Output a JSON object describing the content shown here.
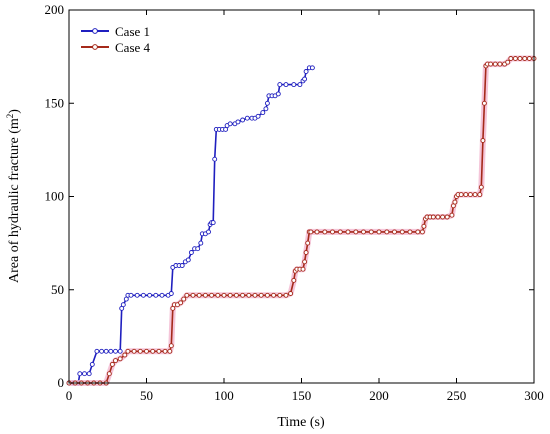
{
  "chart_data": {
    "type": "line",
    "xlabel": "Time (s)",
    "ylabel_text": "Area of hydraulic fracture (m",
    "ylabel_sup": "2",
    "ylabel_close": ")",
    "xlim": [
      0,
      300
    ],
    "ylim": [
      0,
      200
    ],
    "xticks": [
      0,
      50,
      100,
      150,
      200,
      250,
      300
    ],
    "yticks": [
      0,
      50,
      100,
      150,
      200
    ],
    "legend_position": "top-left",
    "series": [
      {
        "name": "Case 1",
        "color": "#1f1fbf",
        "marker": "circle",
        "points": [
          [
            0,
            0
          ],
          [
            3,
            0
          ],
          [
            6,
            0
          ],
          [
            7,
            5
          ],
          [
            10,
            5
          ],
          [
            13,
            5
          ],
          [
            15,
            10
          ],
          [
            18,
            17
          ],
          [
            21,
            17
          ],
          [
            24,
            17
          ],
          [
            27,
            17
          ],
          [
            30,
            17
          ],
          [
            33,
            17
          ],
          [
            34,
            40
          ],
          [
            35,
            42
          ],
          [
            37,
            45
          ],
          [
            38,
            47
          ],
          [
            40,
            47
          ],
          [
            44,
            47
          ],
          [
            48,
            47
          ],
          [
            52,
            47
          ],
          [
            56,
            47
          ],
          [
            60,
            47
          ],
          [
            64,
            47
          ],
          [
            66,
            48
          ],
          [
            67,
            62
          ],
          [
            69,
            63
          ],
          [
            71,
            63
          ],
          [
            73,
            63
          ],
          [
            75,
            65
          ],
          [
            77,
            66
          ],
          [
            79,
            70
          ],
          [
            81,
            72
          ],
          [
            83,
            72
          ],
          [
            85,
            75
          ],
          [
            86,
            80
          ],
          [
            88,
            80
          ],
          [
            90,
            81
          ],
          [
            91,
            85
          ],
          [
            92,
            86
          ],
          [
            93,
            86
          ],
          [
            94,
            120
          ],
          [
            95,
            136
          ],
          [
            97,
            136
          ],
          [
            99,
            136
          ],
          [
            101,
            136
          ],
          [
            102,
            138
          ],
          [
            104,
            139
          ],
          [
            107,
            139
          ],
          [
            109,
            140
          ],
          [
            112,
            141
          ],
          [
            115,
            142
          ],
          [
            118,
            142
          ],
          [
            120,
            142
          ],
          [
            122,
            143
          ],
          [
            125,
            145
          ],
          [
            127,
            147
          ],
          [
            128,
            150
          ],
          [
            129,
            154
          ],
          [
            131,
            154
          ],
          [
            133,
            154
          ],
          [
            135,
            155
          ],
          [
            136,
            160
          ],
          [
            140,
            160
          ],
          [
            145,
            160
          ],
          [
            149,
            160
          ],
          [
            151,
            162
          ],
          [
            152,
            163
          ],
          [
            153,
            167
          ],
          [
            155,
            169
          ],
          [
            157,
            169
          ]
        ]
      },
      {
        "name": "Case 4",
        "color": "#a52a1a",
        "marker": "circle",
        "points": [
          [
            0,
            0
          ],
          [
            4,
            0
          ],
          [
            8,
            0
          ],
          [
            12,
            0
          ],
          [
            16,
            0
          ],
          [
            20,
            0
          ],
          [
            24,
            0
          ],
          [
            26,
            5
          ],
          [
            28,
            10
          ],
          [
            30,
            12
          ],
          [
            33,
            13
          ],
          [
            36,
            15
          ],
          [
            38,
            17
          ],
          [
            42,
            17
          ],
          [
            46,
            17
          ],
          [
            50,
            17
          ],
          [
            54,
            17
          ],
          [
            58,
            17
          ],
          [
            62,
            17
          ],
          [
            65,
            17
          ],
          [
            66,
            20
          ],
          [
            67,
            40
          ],
          [
            68,
            42
          ],
          [
            70,
            42
          ],
          [
            72,
            43
          ],
          [
            74,
            45
          ],
          [
            76,
            47
          ],
          [
            80,
            47
          ],
          [
            84,
            47
          ],
          [
            88,
            47
          ],
          [
            92,
            47
          ],
          [
            96,
            47
          ],
          [
            100,
            47
          ],
          [
            104,
            47
          ],
          [
            108,
            47
          ],
          [
            112,
            47
          ],
          [
            116,
            47
          ],
          [
            120,
            47
          ],
          [
            124,
            47
          ],
          [
            128,
            47
          ],
          [
            132,
            47
          ],
          [
            136,
            47
          ],
          [
            140,
            47
          ],
          [
            143,
            48
          ],
          [
            145,
            55
          ],
          [
            146,
            60
          ],
          [
            147,
            61
          ],
          [
            149,
            61
          ],
          [
            151,
            61
          ],
          [
            152,
            65
          ],
          [
            153,
            70
          ],
          [
            154,
            75
          ],
          [
            155,
            81
          ],
          [
            156,
            81
          ],
          [
            160,
            81
          ],
          [
            165,
            81
          ],
          [
            170,
            81
          ],
          [
            175,
            81
          ],
          [
            180,
            81
          ],
          [
            185,
            81
          ],
          [
            190,
            81
          ],
          [
            195,
            81
          ],
          [
            200,
            81
          ],
          [
            205,
            81
          ],
          [
            210,
            81
          ],
          [
            215,
            81
          ],
          [
            220,
            81
          ],
          [
            225,
            81
          ],
          [
            228,
            81
          ],
          [
            229,
            84
          ],
          [
            230,
            88
          ],
          [
            231,
            89
          ],
          [
            233,
            89
          ],
          [
            235,
            89
          ],
          [
            238,
            89
          ],
          [
            241,
            89
          ],
          [
            244,
            89
          ],
          [
            247,
            90
          ],
          [
            248,
            95
          ],
          [
            249,
            97
          ],
          [
            250,
            100
          ],
          [
            251,
            101
          ],
          [
            253,
            101
          ],
          [
            256,
            101
          ],
          [
            259,
            101
          ],
          [
            262,
            101
          ],
          [
            265,
            101
          ],
          [
            266,
            105
          ],
          [
            267,
            130
          ],
          [
            268,
            150
          ],
          [
            269,
            170
          ],
          [
            270,
            171
          ],
          [
            272,
            171
          ],
          [
            275,
            171
          ],
          [
            278,
            171
          ],
          [
            281,
            171
          ],
          [
            283,
            172
          ],
          [
            285,
            174
          ],
          [
            288,
            174
          ],
          [
            291,
            174
          ],
          [
            294,
            174
          ],
          [
            297,
            174
          ],
          [
            300,
            174
          ]
        ]
      }
    ]
  }
}
